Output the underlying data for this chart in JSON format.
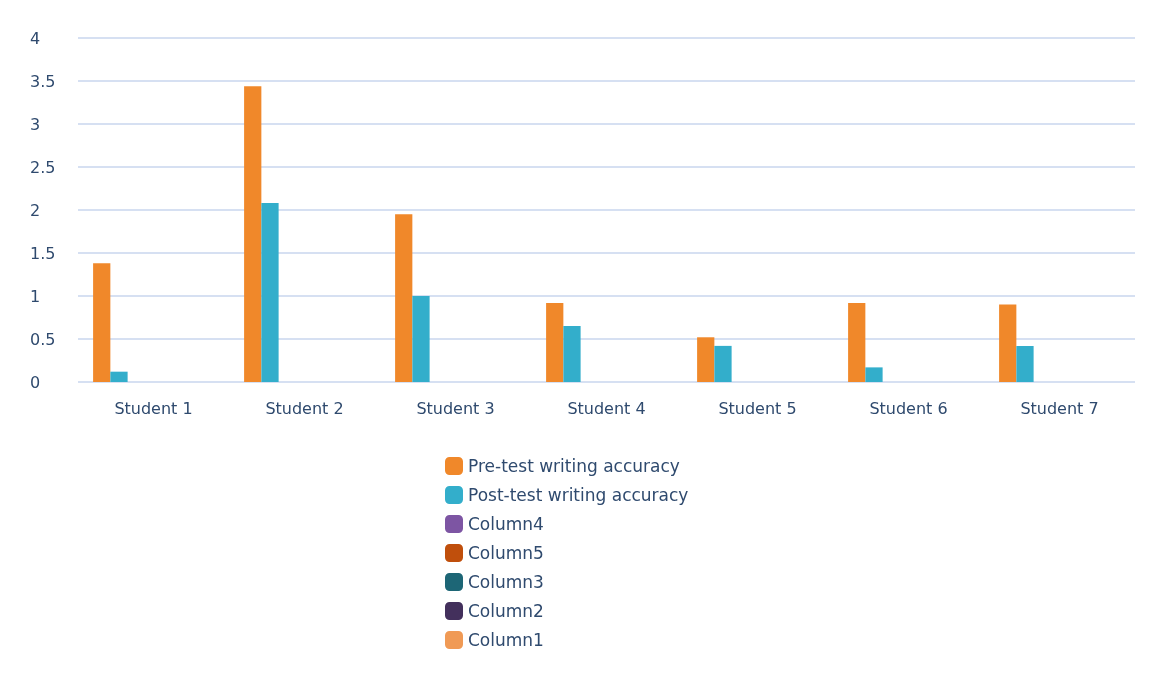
{
  "chart_data": {
    "type": "bar",
    "categories": [
      "Student 1",
      "Student 2",
      "Student 3",
      "Student 4",
      "Student 5",
      "Student 6",
      "Student 7"
    ],
    "series": [
      {
        "name": "Pre-test writing accuracy",
        "color": "#f0882a",
        "values": [
          1.38,
          3.44,
          1.95,
          0.92,
          0.52,
          0.92,
          0.9
        ]
      },
      {
        "name": "Post-test writing accuracy",
        "color": "#33aecb",
        "values": [
          0.12,
          2.08,
          1.0,
          0.65,
          0.42,
          0.17,
          0.42
        ]
      },
      {
        "name": "Column4",
        "color": "#7d55a3",
        "values": [
          null,
          null,
          null,
          null,
          null,
          null,
          null
        ]
      },
      {
        "name": "Column5",
        "color": "#c04f0c",
        "values": [
          null,
          null,
          null,
          null,
          null,
          null,
          null
        ]
      },
      {
        "name": "Column3",
        "color": "#1d6676",
        "values": [
          null,
          null,
          null,
          null,
          null,
          null,
          null
        ]
      },
      {
        "name": "Column2",
        "color": "#43305c",
        "values": [
          null,
          null,
          null,
          null,
          null,
          null,
          null
        ]
      },
      {
        "name": "Column1",
        "color": "#f09a55",
        "values": [
          null,
          null,
          null,
          null,
          null,
          null,
          null
        ]
      }
    ],
    "ylim": [
      0,
      4
    ],
    "yticks": [
      0,
      0.5,
      1,
      1.5,
      2,
      2.5,
      3,
      3.5,
      4
    ],
    "grid": "y",
    "legend": "bottom"
  }
}
